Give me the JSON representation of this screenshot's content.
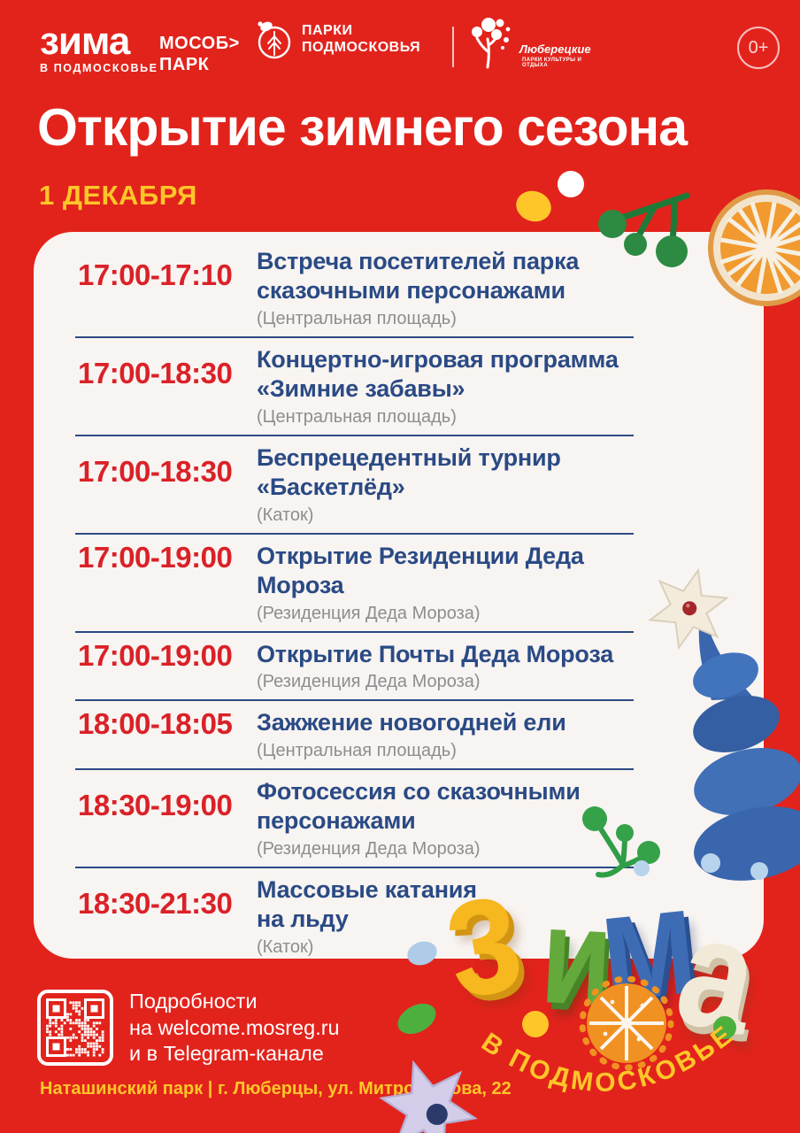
{
  "palette": {
    "background_red": "#e2231c",
    "card_white": "#f8f4f1",
    "accent_blue": "#2a4a85",
    "time_red": "#da2128",
    "accent_yellow": "#ffc629",
    "location_gray": "#8d8d90"
  },
  "header": {
    "zima_logo": {
      "title": "зима",
      "subtitle": "В ПОДМОСКОВЬЕ"
    },
    "mosobpark_logo": {
      "line1": "МОСОБ>",
      "line2": "ПАРК"
    },
    "parki_logo": {
      "line1": "ПАРКИ",
      "line2": "ПОДМОСКОВЬЯ"
    },
    "lyuberetskie_logo": {
      "title": "Люберецкие",
      "subtitle": "ПАРКИ КУЛЬТУРЫ И ОТДЫХА"
    },
    "age_badge": "0+"
  },
  "title": "Открытие зимнего сезона",
  "date": "1 ДЕКАБРЯ",
  "schedule": {
    "rows": [
      {
        "time": "17:00-17:10",
        "title": "Встреча посетителей парка\nсказочными персонажами",
        "location": "(Центральная площадь)"
      },
      {
        "time": "17:00-18:30",
        "title": "Концертно-игровая программа\n«Зимние забавы»",
        "location": "(Центральная площадь)"
      },
      {
        "time": "17:00-18:30",
        "title": "Беспрецедентный турнир\n«Баскетлёд»",
        "location": "(Каток)"
      },
      {
        "time": "17:00-19:00",
        "title": "Открытие Резиденции Деда Мороза",
        "location": "(Резиденция Деда Мороза)"
      },
      {
        "time": "17:00-19:00",
        "title": "Открытие Почты Деда Мороза",
        "location": "(Резиденция Деда Мороза)"
      },
      {
        "time": "18:00-18:05",
        "title": "Зажжение новогодней ели",
        "location": "(Центральная площадь)"
      },
      {
        "time": "18:30-19:00",
        "title": "Фотосессия со сказочными\nперсонажами",
        "location": "(Резиденция Деда Мороза)"
      },
      {
        "time": "18:30-21:30",
        "title": "Массовые катания\nна льду",
        "location": "(Каток)"
      }
    ]
  },
  "footer": {
    "details": "Подробности\nна welcome.mosreg.ru\nи в Telegram-канале",
    "address": "Наташинский парк | г. Люберцы, ул. Митрофанова, 22"
  },
  "decor": {
    "zima_letters": [
      "з",
      "и",
      "м",
      "а"
    ],
    "curved_text": "В ПОДМОСКОВЬЕ"
  }
}
